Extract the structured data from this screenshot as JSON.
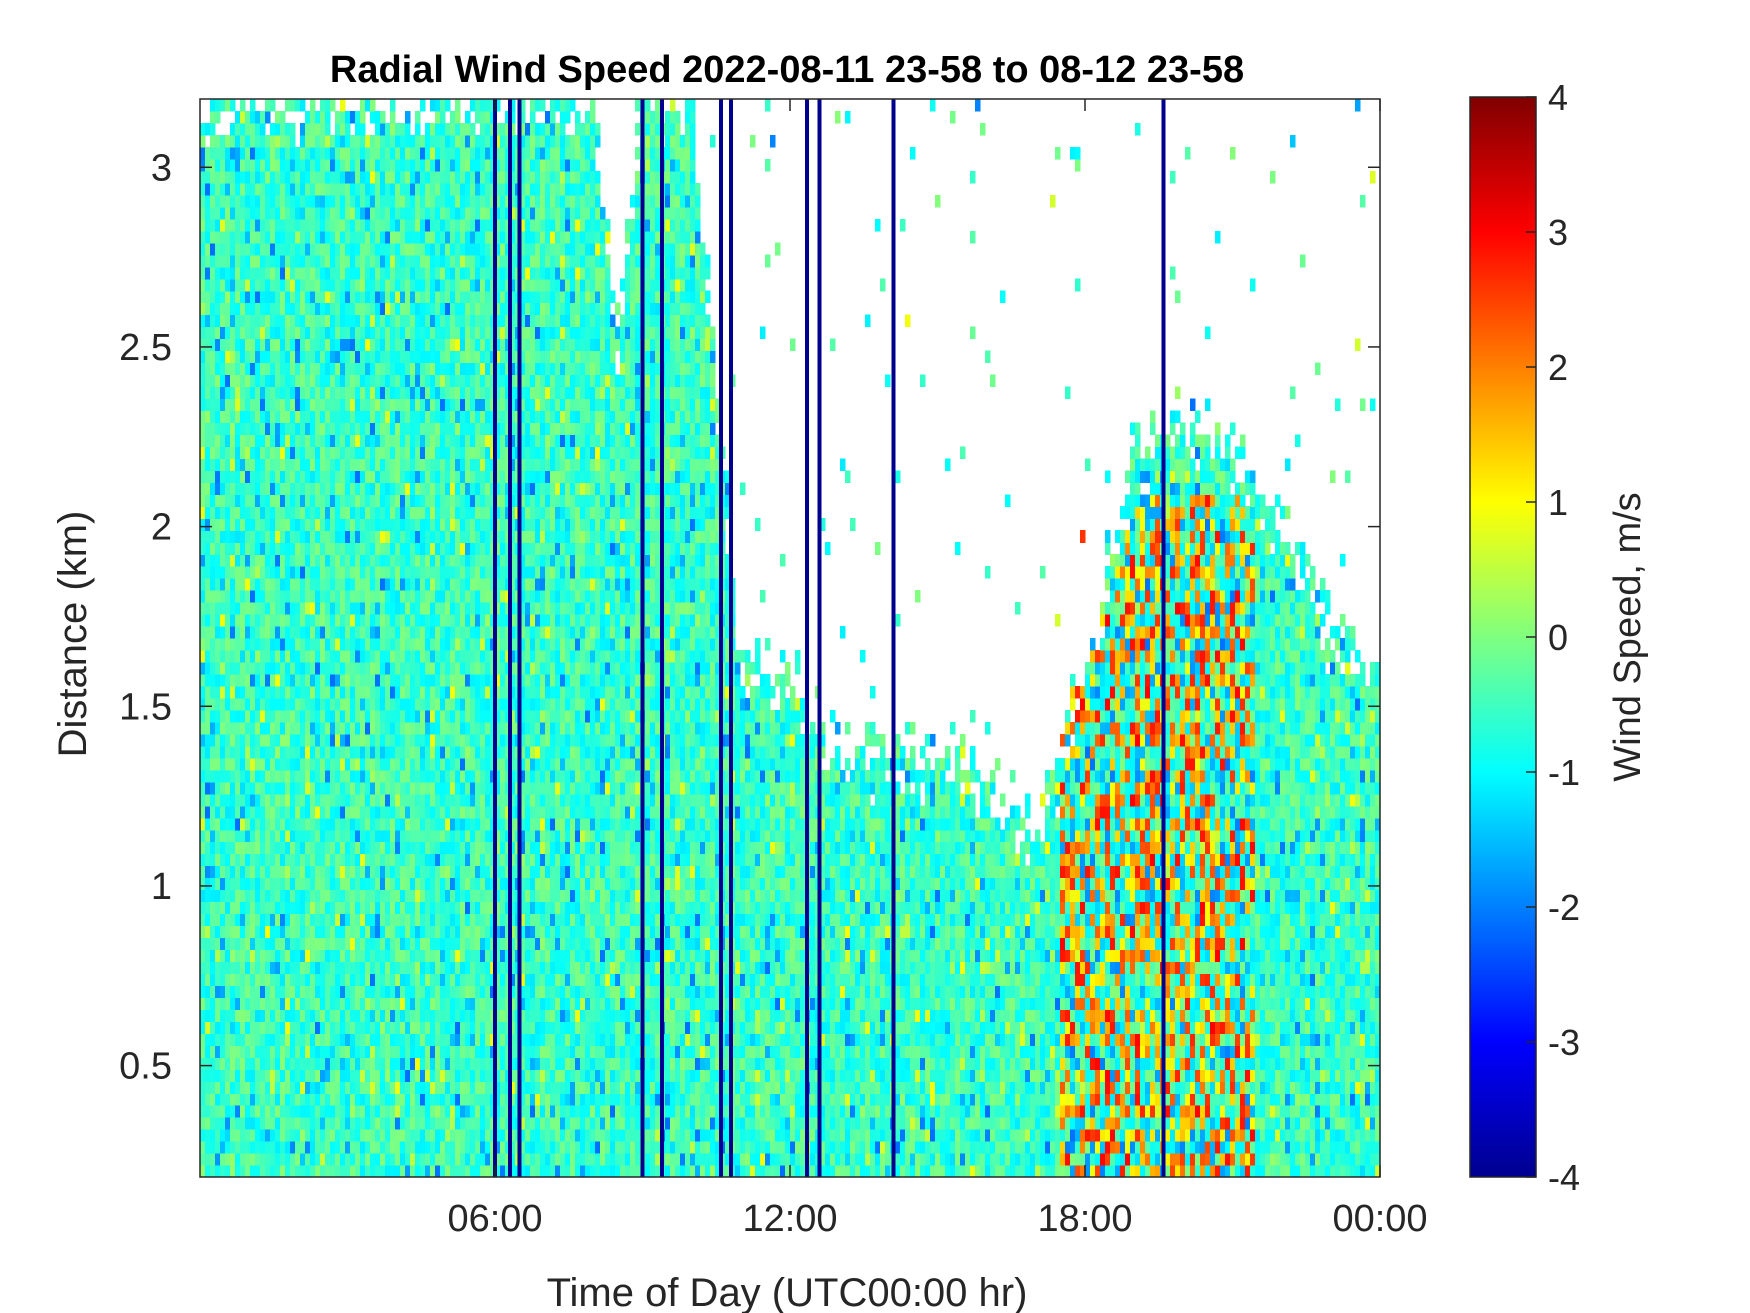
{
  "chart_data": {
    "type": "heatmap",
    "title": "Radial Wind Speed 2022-08-11 23-58 to 08-12 23-58",
    "xlabel": "Time of Day (UTC00:00 hr)",
    "ylabel": "Distance (km)",
    "colorbar_label": "Wind Speed, m/s",
    "colormap": "jet",
    "x_unit": "hours",
    "xlim": [
      0,
      24
    ],
    "ylim": [
      0.19,
      3.19
    ],
    "clim": [
      -4,
      4
    ],
    "x_ticks": [
      {
        "value": 6,
        "label": "06:00"
      },
      {
        "value": 12,
        "label": "12:00"
      },
      {
        "value": 18,
        "label": "18:00"
      },
      {
        "value": 24,
        "label": "00:00"
      }
    ],
    "y_ticks": [
      {
        "value": 0.5,
        "label": "0.5"
      },
      {
        "value": 1,
        "label": "1"
      },
      {
        "value": 1.5,
        "label": "1.5"
      },
      {
        "value": 2,
        "label": "2"
      },
      {
        "value": 2.5,
        "label": "2.5"
      },
      {
        "value": 3,
        "label": "3"
      }
    ],
    "c_ticks": [
      {
        "value": 4,
        "label": "4"
      },
      {
        "value": 3,
        "label": "3"
      },
      {
        "value": 2,
        "label": "2"
      },
      {
        "value": 1,
        "label": "1"
      },
      {
        "value": 0,
        "label": "0"
      },
      {
        "value": -1,
        "label": "-1"
      },
      {
        "value": -2,
        "label": "-2"
      },
      {
        "value": -3,
        "label": "-3"
      },
      {
        "value": -4,
        "label": "-4"
      }
    ],
    "data_top_profile": {
      "time_hr": [
        0,
        1,
        2,
        3,
        4,
        5,
        5.5,
        6,
        7,
        8,
        8.5,
        9,
        10,
        11,
        12,
        13,
        14,
        15,
        16,
        17,
        18,
        19,
        20,
        21,
        22,
        23,
        24
      ],
      "max_distance_km": [
        3.19,
        3.19,
        3.19,
        3.19,
        3.19,
        3.19,
        3.19,
        3.19,
        3.19,
        3.19,
        2.5,
        3.19,
        3.19,
        1.6,
        1.55,
        1.35,
        1.35,
        1.35,
        1.3,
        1.1,
        1.6,
        2.2,
        2.3,
        2.2,
        2.0,
        1.7,
        1.6
      ]
    },
    "noise_columns_hr": [
      6.0,
      6.3,
      6.5,
      9.0,
      9.4,
      10.6,
      10.8,
      12.35,
      12.6,
      14.1,
      19.6
    ],
    "warm_region": {
      "time_hr": [
        17.5,
        21.5
      ],
      "distance_km": [
        0.19,
        2.1
      ],
      "typical_value": 1.5
    }
  }
}
